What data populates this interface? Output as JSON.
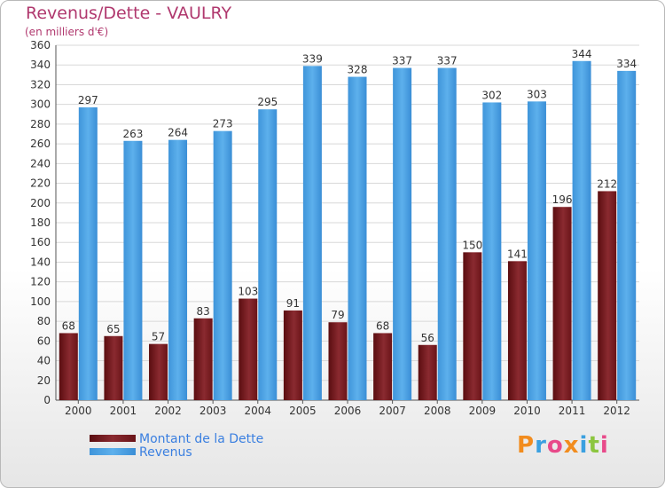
{
  "chart_data": {
    "type": "bar",
    "title": "Revenus/Dette - VAULRY",
    "subtitle": "(en milliers d'€)",
    "categories": [
      "2000",
      "2001",
      "2002",
      "2003",
      "2004",
      "2005",
      "2006",
      "2007",
      "2008",
      "2009",
      "2010",
      "2011",
      "2012"
    ],
    "series": [
      {
        "name": "Montant de la Dette",
        "color": "#7a1a1f",
        "values": [
          68,
          65,
          57,
          83,
          103,
          91,
          79,
          68,
          56,
          150,
          141,
          196,
          212
        ]
      },
      {
        "name": "Revenus",
        "color": "#4aa0e0",
        "values": [
          297,
          263,
          264,
          273,
          295,
          339,
          328,
          337,
          337,
          302,
          303,
          344,
          334
        ]
      }
    ],
    "ylim": [
      0,
      360
    ],
    "yticks": [
      0,
      20,
      40,
      60,
      80,
      100,
      120,
      140,
      160,
      180,
      200,
      220,
      240,
      260,
      280,
      300,
      320,
      340,
      360
    ],
    "grid": true,
    "legend_position": "bottom-left"
  },
  "brand": {
    "text": "Proxiti",
    "letters": [
      "P",
      "r",
      "o",
      "x",
      "i",
      "t",
      "i"
    ],
    "colors": [
      "#f28c1e",
      "#3aa0e0",
      "#e84a8a",
      "#f28c1e",
      "#3aa0e0",
      "#8cc63f",
      "#e84a8a"
    ]
  }
}
